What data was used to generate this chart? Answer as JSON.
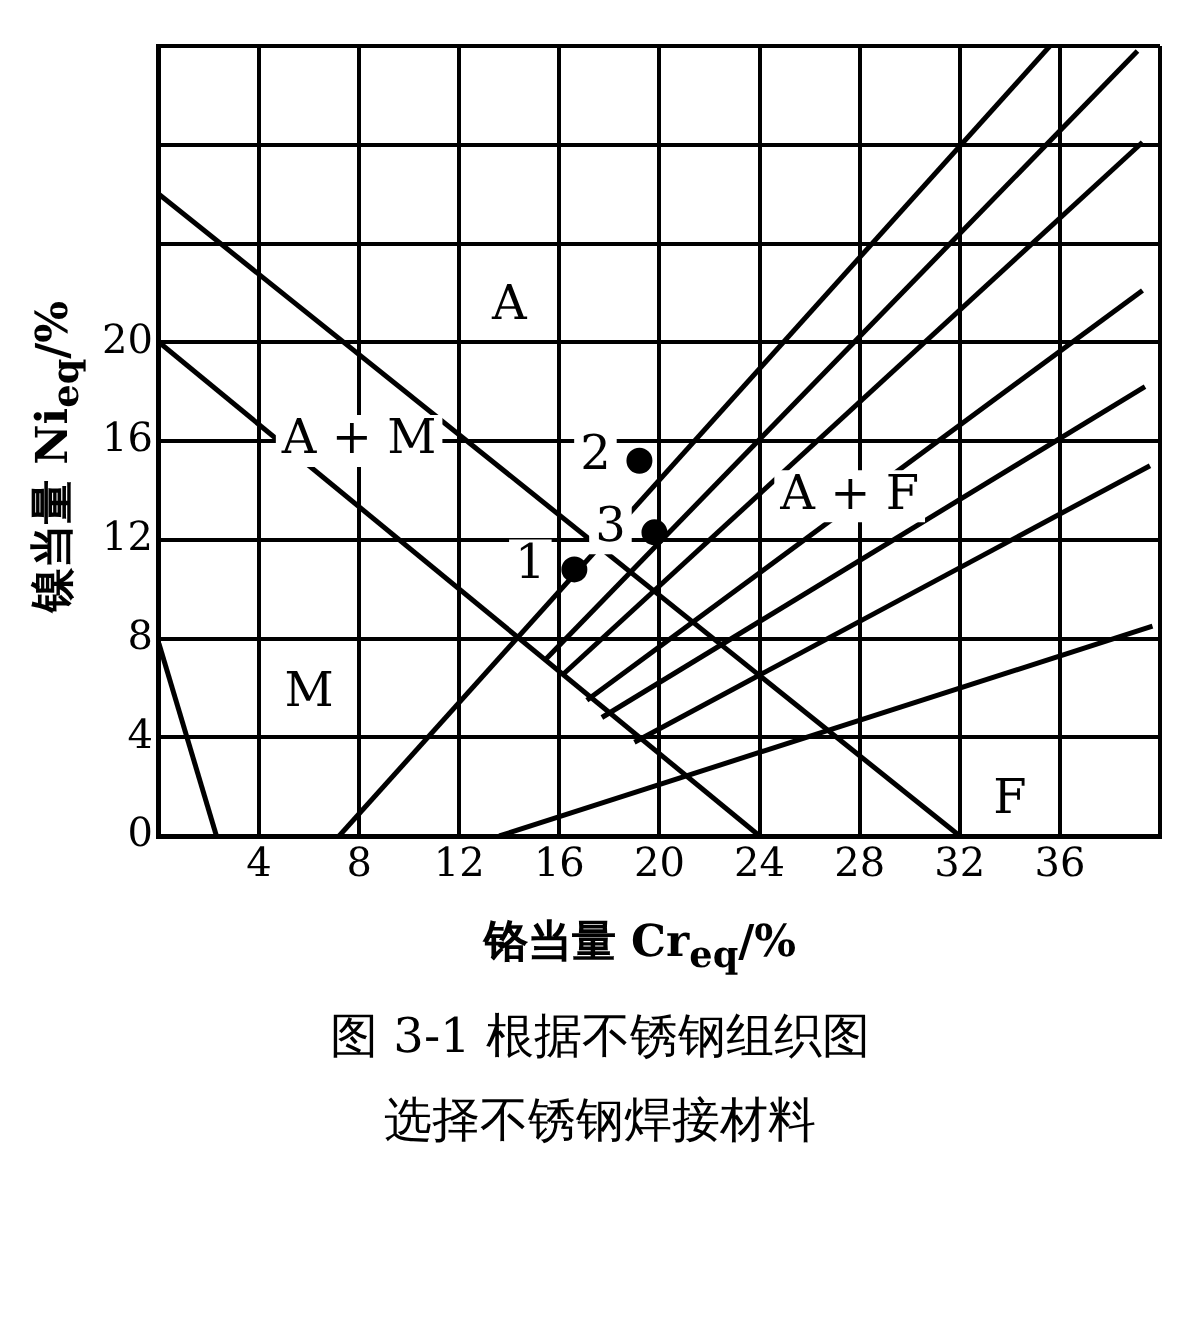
{
  "chart_data": {
    "type": "line",
    "title": "图 3-1  根据不锈钢组织图",
    "subtitle": "选择不锈钢焊接材料",
    "xlabel": "铬当量 Cr$_{eq}$/%",
    "ylabel": "镍当量 Ni$_{eq}$/%",
    "xlim": [
      0,
      40
    ],
    "ylim": [
      0,
      32
    ],
    "xticks": [
      {
        "value": 0,
        "label": null
      },
      4,
      8,
      12,
      16,
      20,
      24,
      28,
      32,
      36,
      {
        "value": 40,
        "label": null
      }
    ],
    "yticks": [
      0,
      4,
      8,
      12,
      16,
      20,
      {
        "value": 24,
        "label": null
      },
      {
        "value": 28,
        "label": null
      },
      {
        "value": 32,
        "label": null
      }
    ],
    "grid": true,
    "marker": "none",
    "line_style": "solid",
    "series": [
      {
        "color": "#000000",
        "x": [
          0,
          2.3
        ],
        "values": [
          7.8,
          0
        ]
      },
      {
        "color": "#000000",
        "x": [
          0,
          24
        ],
        "values": [
          20,
          0
        ]
      },
      {
        "color": "#000000",
        "x": [
          0,
          32
        ],
        "values": [
          26,
          0
        ]
      },
      {
        "color": "#000000",
        "x": [
          7.2,
          35.6
        ],
        "values": [
          0,
          32
        ]
      },
      {
        "color": "#000000",
        "x": [
          15.4,
          39.1
        ],
        "values": [
          7.1,
          31.8
        ]
      },
      {
        "color": "#000000",
        "x": [
          16.1,
          39.3
        ],
        "values": [
          6.5,
          28.1
        ]
      },
      {
        "color": "#000000",
        "x": [
          17.1,
          39.3
        ],
        "values": [
          5.5,
          22.1
        ]
      },
      {
        "color": "#000000",
        "x": [
          17.7,
          39.4
        ],
        "values": [
          4.8,
          18.2
        ]
      },
      {
        "color": "#000000",
        "x": [
          19,
          39.6
        ],
        "values": [
          3.8,
          15
        ]
      },
      {
        "color": "#000000",
        "x": [
          13.6,
          39.7
        ],
        "values": [
          0,
          8.5
        ]
      },
      {
        "type": "scatter",
        "name": "1",
        "color": "#000000",
        "marker": "circle",
        "x": [
          16.6
        ],
        "values": [
          10.8
        ]
      },
      {
        "type": "scatter",
        "name": "2",
        "color": "#000000",
        "marker": "circle",
        "x": [
          19.2
        ],
        "values": [
          15.2
        ]
      },
      {
        "type": "scatter",
        "name": "3",
        "color": "#000000",
        "marker": "circle",
        "x": [
          19.8
        ],
        "values": [
          12.3
        ]
      }
    ],
    "annotations": [
      "A",
      "A + M",
      "A + F",
      "M",
      "F"
    ]
  }
}
